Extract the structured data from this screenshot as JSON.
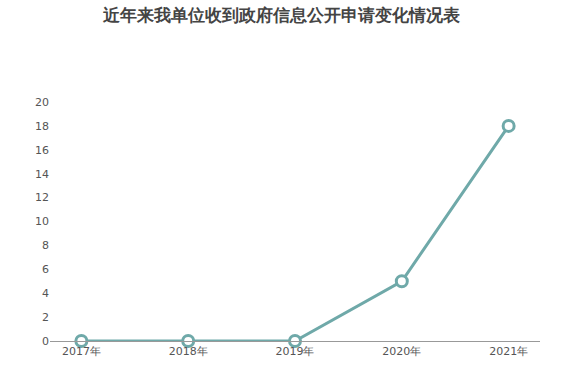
{
  "chart_data": {
    "type": "line",
    "title": "近年来我单位收到政府信息公开申请变化情况表",
    "categories": [
      "2017年",
      "2018年",
      "2019年",
      "2020年",
      "2021年"
    ],
    "values": [
      0,
      0,
      0,
      5,
      18
    ],
    "color": "#6fa9a9",
    "marker": "hollow_circle",
    "ylim": [
      0,
      20
    ],
    "yticks": [
      0,
      2,
      4,
      6,
      8,
      10,
      12,
      14,
      16,
      18,
      20
    ],
    "grid": false
  }
}
